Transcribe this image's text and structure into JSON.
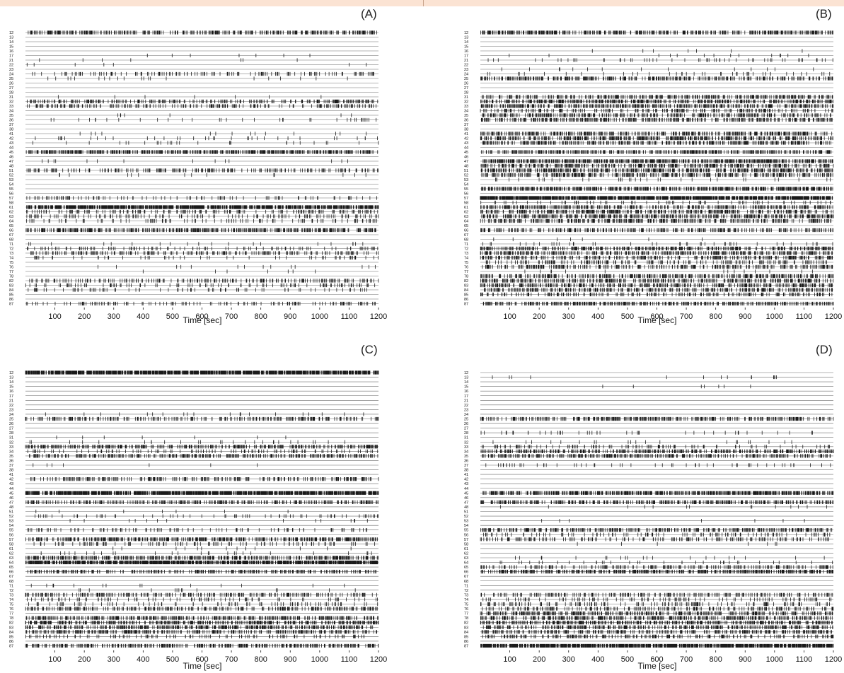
{
  "colors": {
    "spike": "#1a1a1a",
    "baseline": "#6a6a6a",
    "text": "#111111",
    "top_band": "#fbe3d3"
  },
  "chart_data": [
    {
      "type": "raster",
      "panel_label": "(A)",
      "xlabel": "Time [sec]",
      "xlim": [
        0,
        1200
      ],
      "xticks": [
        100,
        200,
        300,
        400,
        500,
        600,
        700,
        800,
        900,
        1000,
        1100,
        1200
      ],
      "channels": [
        "12",
        "13",
        "14",
        "15",
        "16",
        "17",
        "21",
        "22",
        "23",
        "24",
        "25",
        "26",
        "27",
        "28",
        "31",
        "32",
        "33",
        "34",
        "35",
        "36",
        "37",
        "38",
        "41",
        "42",
        "43",
        "44",
        "45",
        "46",
        "47",
        "48",
        "51",
        "52",
        "53",
        "54",
        "55",
        "56",
        "57",
        "58",
        "61",
        "62",
        "63",
        "64",
        "65",
        "66",
        "67",
        "68",
        "71",
        "72",
        "73",
        "74",
        "75",
        "76",
        "77",
        "78",
        "82",
        "83",
        "84",
        "85",
        "86",
        "87"
      ],
      "spike_density": [
        0.5,
        0,
        0,
        0,
        0,
        0.01,
        0.01,
        0.01,
        0,
        0.2,
        0.03,
        0,
        0,
        0,
        0.01,
        0.35,
        0.3,
        0,
        0.01,
        0.05,
        0,
        0,
        0.02,
        0.05,
        0.04,
        0,
        0.7,
        0,
        0.02,
        0,
        0.3,
        0.02,
        0,
        0,
        0,
        0,
        0.15,
        0,
        0.85,
        0.25,
        0.2,
        0.15,
        0,
        0.6,
        0,
        0,
        0.03,
        0.15,
        0.3,
        0.08,
        0,
        0.02,
        0.01,
        0,
        0.3,
        0.15,
        0.12,
        0,
        0,
        0.2
      ]
    },
    {
      "type": "raster",
      "panel_label": "(B)",
      "xlabel": "Time [sec]",
      "xlim": [
        0,
        1200
      ],
      "xticks": [
        100,
        200,
        300,
        400,
        500,
        600,
        700,
        800,
        900,
        1000,
        1100,
        1200
      ],
      "channels": [
        "12",
        "13",
        "14",
        "15",
        "16",
        "17",
        "21",
        "22",
        "23",
        "24",
        "25",
        "26",
        "27",
        "28",
        "31",
        "32",
        "33",
        "34",
        "35",
        "36",
        "37",
        "38",
        "41",
        "42",
        "43",
        "44",
        "45",
        "46",
        "47",
        "48",
        "51",
        "52",
        "53",
        "54",
        "55",
        "56",
        "57",
        "58",
        "61",
        "62",
        "63",
        "64",
        "65",
        "66",
        "67",
        "68",
        "71",
        "72",
        "73",
        "74",
        "75",
        "76",
        "77",
        "78",
        "82",
        "83",
        "84",
        "85",
        "86",
        "87"
      ],
      "spike_density": [
        0.6,
        0,
        0,
        0,
        0.01,
        0.02,
        0.08,
        0,
        0.02,
        0.06,
        0.5,
        0,
        0,
        0,
        0.5,
        0.6,
        0.55,
        0.3,
        0.45,
        0.5,
        0,
        0,
        0.55,
        0.6,
        0.5,
        0,
        0.55,
        0,
        0.8,
        0.5,
        0.6,
        0.5,
        0.05,
        0,
        0.7,
        0,
        1,
        0.1,
        0.5,
        0.5,
        0.6,
        0.5,
        0,
        0.4,
        0,
        0.01,
        0.06,
        0.5,
        0.5,
        0.4,
        0.25,
        0.4,
        0.02,
        0.5,
        0.5,
        0.5,
        0.45,
        0.3,
        0,
        0.55
      ]
    },
    {
      "type": "raster",
      "panel_label": "(C)",
      "xlabel": "Time [sec]",
      "xlim": [
        0,
        1200
      ],
      "xticks": [
        100,
        200,
        300,
        400,
        500,
        600,
        700,
        800,
        900,
        1000,
        1100,
        1200
      ],
      "channels": [
        "12",
        "13",
        "14",
        "15",
        "16",
        "17",
        "21",
        "22",
        "23",
        "24",
        "25",
        "26",
        "27",
        "28",
        "31",
        "32",
        "33",
        "34",
        "35",
        "36",
        "37",
        "38",
        "41",
        "42",
        "43",
        "44",
        "45",
        "46",
        "47",
        "48",
        "51",
        "52",
        "53",
        "54",
        "55",
        "56",
        "57",
        "58",
        "61",
        "62",
        "63",
        "64",
        "65",
        "66",
        "67",
        "68",
        "71",
        "72",
        "73",
        "74",
        "75",
        "76",
        "77",
        "78",
        "82",
        "83",
        "84",
        "85",
        "86",
        "87"
      ],
      "spike_density": [
        1,
        0,
        0,
        0,
        0,
        0,
        0,
        0,
        0,
        0.03,
        0.35,
        0,
        0,
        0,
        0.01,
        0.04,
        0.5,
        0.15,
        0.45,
        0,
        0.01,
        0,
        0,
        0.35,
        0,
        0,
        0.9,
        0,
        0.4,
        0,
        0.01,
        0.1,
        0.02,
        0,
        0.15,
        0,
        0.6,
        0.15,
        0.02,
        0.04,
        0.6,
        0.85,
        0,
        0.4,
        0,
        0,
        0.02,
        0.02,
        0.35,
        0.12,
        0.12,
        0.4,
        0,
        0.5,
        0.55,
        0.6,
        0.45,
        0.15,
        0,
        0.55
      ]
    },
    {
      "type": "raster",
      "panel_label": "(D)",
      "xlabel": "Time [sec]",
      "xlim": [
        0,
        1200
      ],
      "xticks": [
        100,
        200,
        300,
        400,
        500,
        600,
        700,
        800,
        900,
        1000,
        1100,
        1200
      ],
      "channels": [
        "12",
        "13",
        "14",
        "15",
        "16",
        "17",
        "21",
        "22",
        "23",
        "24",
        "25",
        "26",
        "27",
        "28",
        "31",
        "32",
        "33",
        "34",
        "35",
        "36",
        "37",
        "38",
        "41",
        "42",
        "43",
        "44",
        "45",
        "46",
        "47",
        "48",
        "51",
        "52",
        "53",
        "54",
        "55",
        "56",
        "57",
        "58",
        "61",
        "62",
        "63",
        "64",
        "65",
        "66",
        "67",
        "68",
        "71",
        "72",
        "73",
        "74",
        "75",
        "76",
        "77",
        "78",
        "82",
        "83",
        "84",
        "85",
        "86",
        "87"
      ],
      "spike_density": [
        0,
        0.02,
        0,
        0.01,
        0,
        0,
        0,
        0,
        0,
        0,
        0.5,
        0,
        0,
        0.06,
        0,
        0.03,
        0.15,
        0.5,
        0.45,
        0,
        0.08,
        0,
        0,
        0,
        0,
        0,
        0.8,
        0,
        0.5,
        0.02,
        0,
        0,
        0.01,
        0,
        0.5,
        0.15,
        0.25,
        0.01,
        0,
        0,
        0.03,
        0.05,
        0.3,
        0.6,
        0,
        0,
        0,
        0,
        0.3,
        0.15,
        0.2,
        0.3,
        0.5,
        0.5,
        0.55,
        0.5,
        0.45,
        0.3,
        0,
        0.9
      ]
    }
  ]
}
